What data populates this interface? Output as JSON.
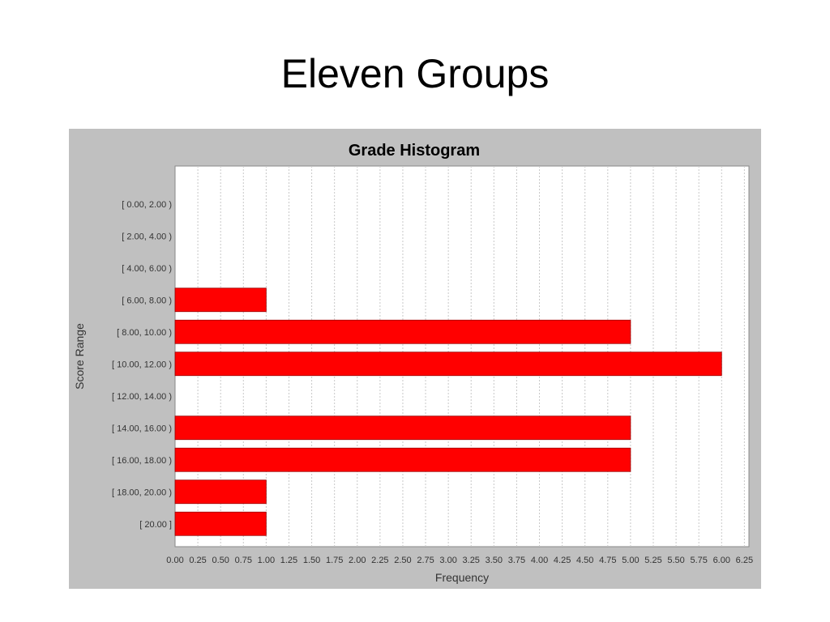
{
  "slide": {
    "title": "Eleven Groups"
  },
  "chart_data": {
    "type": "bar",
    "orientation": "horizontal",
    "title": "Grade Histogram",
    "xlabel": "Frequency",
    "ylabel": "Score Range",
    "categories": [
      "[ 0.00, 2.00 )",
      "[ 2.00, 4.00 )",
      "[ 4.00, 6.00 )",
      "[ 6.00, 8.00 )",
      "[ 8.00, 10.00 )",
      "[ 10.00, 12.00 )",
      "[ 12.00, 14.00 )",
      "[ 14.00, 16.00 )",
      "[ 16.00, 18.00 )",
      "[ 18.00, 20.00 )",
      "[ 20.00 ]"
    ],
    "values": [
      0,
      0,
      0,
      1,
      5,
      6,
      0,
      5,
      5,
      1,
      1
    ],
    "xlim": [
      0,
      6.3
    ],
    "xticks": [
      "0.00",
      "0.25",
      "0.50",
      "0.75",
      "1.00",
      "1.25",
      "1.50",
      "1.75",
      "2.00",
      "2.25",
      "2.50",
      "2.75",
      "3.00",
      "3.25",
      "3.50",
      "3.75",
      "4.00",
      "4.25",
      "4.50",
      "4.75",
      "5.00",
      "5.25",
      "5.50",
      "5.75",
      "6.00",
      "6.25"
    ],
    "grid": true,
    "bar_color": "#ff0000",
    "background": "#c0c0c0",
    "plot_background": "#ffffff"
  }
}
